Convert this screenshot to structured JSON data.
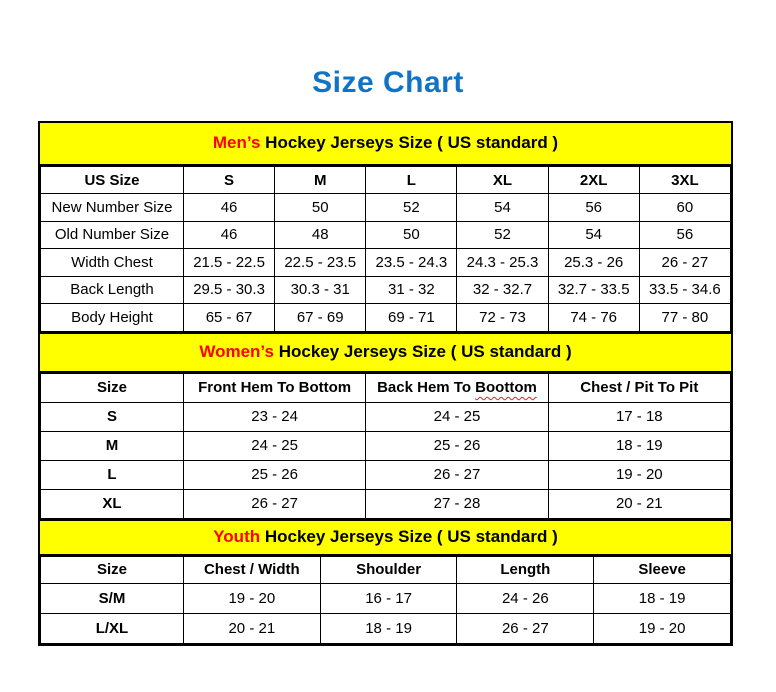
{
  "page": {
    "title": "Size Chart"
  },
  "colors": {
    "title_blue": "#0f74c5",
    "banner_bg": "#ffff00",
    "highlight_red": "#ff0000",
    "squiggle_red": "#e02424",
    "border_black": "#000000"
  },
  "sections": [
    {
      "id": "mens",
      "banner": {
        "highlight": "Men’s",
        "rest": "Hockey Jerseys Size ( US standard )"
      },
      "columns": [
        "US Size",
        "S",
        "M",
        "L",
        "XL",
        "2XL",
        "3XL"
      ],
      "rows": [
        {
          "label": "New Number Size",
          "values": [
            "46",
            "50",
            "52",
            "54",
            "56",
            "60"
          ]
        },
        {
          "label": "Old Number Size",
          "values": [
            "46",
            "48",
            "50",
            "52",
            "54",
            "56"
          ]
        },
        {
          "label": "Width Chest",
          "values": [
            "21.5 - 22.5",
            "22.5 - 23.5",
            "23.5 - 24.3",
            "24.3 - 25.3",
            "25.3 - 26",
            "26 - 27"
          ]
        },
        {
          "label": "Back Length",
          "values": [
            "29.5 - 30.3",
            "30.3 - 31",
            "31 - 32",
            "32 - 32.7",
            "32.7 - 33.5",
            "33.5 - 34.6"
          ]
        },
        {
          "label": "Body Height",
          "values": [
            "65 - 67",
            "67 - 69",
            "69 - 71",
            "72 - 73",
            "74 - 76",
            "77 - 80"
          ]
        }
      ]
    },
    {
      "id": "womens",
      "banner": {
        "highlight": "Women’s",
        "rest": "Hockey Jerseys Size ( US standard )"
      },
      "columns": [
        "Size",
        "Front Hem To Bottom",
        "Back Hem To Boottom",
        "Chest / Pit To Pit"
      ],
      "red_squiggle": {
        "column": 2,
        "word": "Boottom"
      },
      "rows": [
        {
          "label": "S",
          "values": [
            "23 - 24",
            "24 - 25",
            "17 - 18"
          ]
        },
        {
          "label": "M",
          "values": [
            "24 - 25",
            "25 - 26",
            "18 - 19"
          ]
        },
        {
          "label": "L",
          "values": [
            "25 - 26",
            "26 - 27",
            "19 - 20"
          ]
        },
        {
          "label": "XL",
          "values": [
            "26 - 27",
            "27 - 28",
            "20 - 21"
          ]
        }
      ]
    },
    {
      "id": "youth",
      "banner": {
        "highlight": "Youth",
        "rest": "Hockey Jerseys Size ( US standard )"
      },
      "columns": [
        "Size",
        "Chest / Width",
        "Shoulder",
        "Length",
        "Sleeve"
      ],
      "rows": [
        {
          "label": "S/M",
          "values": [
            "19 - 20",
            "16 - 17",
            "24 - 26",
            "18 - 19"
          ]
        },
        {
          "label": "L/XL",
          "values": [
            "20 - 21",
            "18 - 19",
            "26 - 27",
            "19 - 20"
          ]
        }
      ]
    }
  ]
}
